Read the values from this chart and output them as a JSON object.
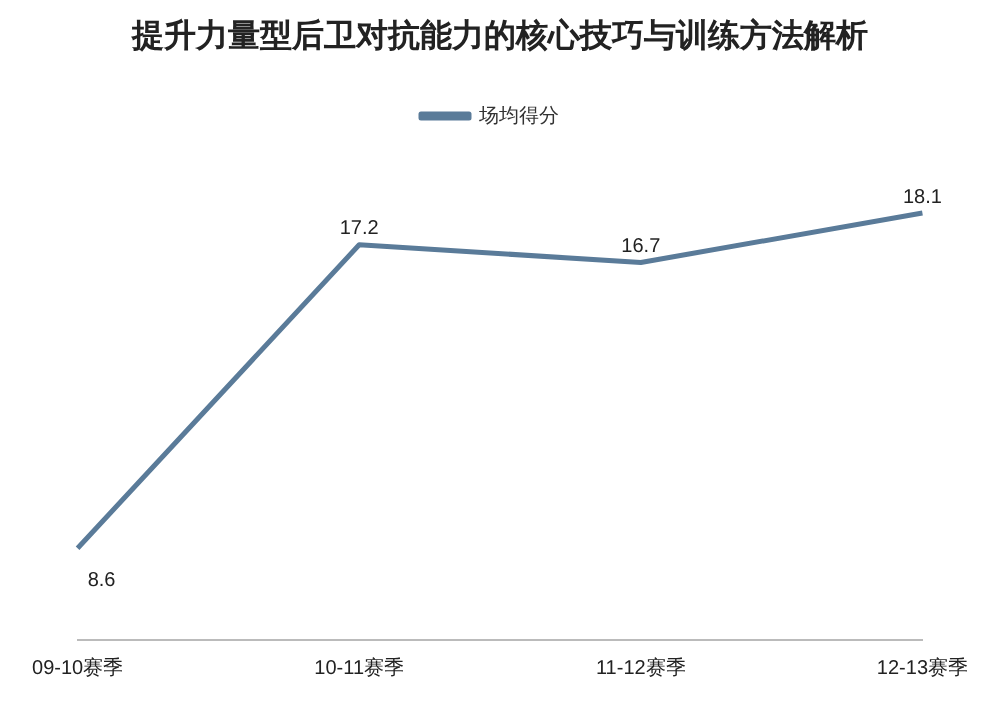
{
  "chart_data": {
    "type": "line",
    "title": "提升力量型后卫对抗能力的核心技巧与训练方法解析",
    "categories": [
      "09-10赛季",
      "10-11赛季",
      "11-12赛季",
      "12-13赛季"
    ],
    "series": [
      {
        "name": "场均得分",
        "color": "#5a7b99",
        "values": [
          8.6,
          17.2,
          16.7,
          18.1
        ]
      }
    ],
    "data_labels": true,
    "legend": "top",
    "marker": "none",
    "grid": false
  }
}
